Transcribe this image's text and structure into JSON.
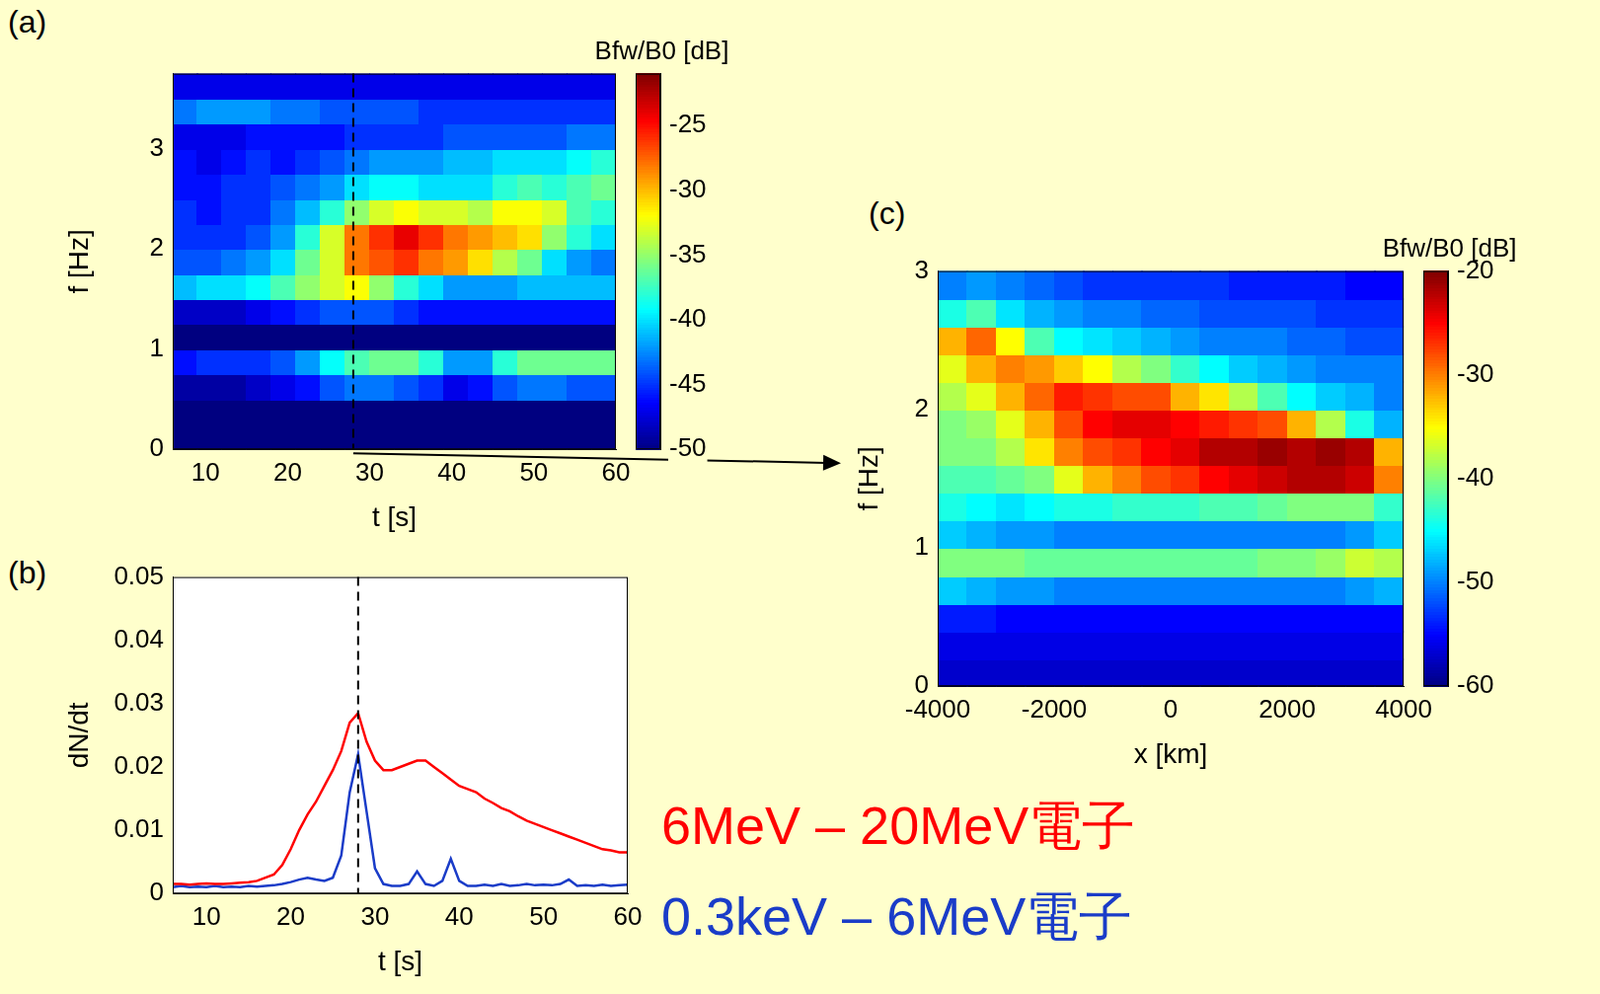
{
  "chart_data": [
    {
      "panel": "(a)",
      "type": "heatmap",
      "x_label": "t [s]",
      "y_label": "f [Hz]",
      "xlim": [
        6,
        60
      ],
      "xticks": [
        10,
        20,
        30,
        40,
        50,
        60
      ],
      "ylim": [
        0,
        3.75
      ],
      "yticks": [
        0,
        1,
        2,
        3
      ],
      "x_edges": [
        6,
        9,
        12,
        15,
        18,
        21,
        24,
        27,
        30,
        33,
        36,
        39,
        42,
        45,
        48,
        51,
        54,
        57,
        60
      ],
      "y_edges": [
        0,
        0.25,
        0.5,
        0.75,
        1,
        1.25,
        1.5,
        1.75,
        2,
        2.25,
        2.5,
        2.75,
        3,
        3.25,
        3.5,
        3.75
      ],
      "z": [
        [
          -50,
          -50,
          -50,
          -50,
          -50,
          -50,
          -50,
          -50,
          -50,
          -50,
          -50,
          -50,
          -50,
          -50,
          -50,
          -50,
          -50,
          -50
        ],
        [
          -50,
          -50,
          -50,
          -50,
          -50,
          -50,
          -50,
          -50,
          -50,
          -50,
          -50,
          -50,
          -50,
          -50,
          -50,
          -50,
          -50,
          -50
        ],
        [
          -49,
          -49,
          -49,
          -48,
          -47,
          -46,
          -44,
          -43,
          -43,
          -44,
          -45,
          -47,
          -46,
          -44,
          -43,
          -43,
          -44,
          -44
        ],
        [
          -46,
          -45,
          -45,
          -45,
          -44,
          -42,
          -39,
          -37,
          -36,
          -36,
          -38,
          -42,
          -42,
          -38,
          -36,
          -36,
          -36,
          -36
        ],
        [
          -50,
          -50,
          -50,
          -50,
          -50,
          -50,
          -50,
          -50,
          -50,
          -50,
          -50,
          -50,
          -50,
          -50,
          -50,
          -50,
          -50,
          -50
        ],
        [
          -48,
          -48,
          -48,
          -47,
          -46,
          -45,
          -44,
          -44,
          -44,
          -45,
          -46,
          -46,
          -46,
          -46,
          -46,
          -46,
          -46,
          -46
        ],
        [
          -41,
          -40,
          -40,
          -39,
          -37,
          -35,
          -33,
          -32,
          -35,
          -38,
          -40,
          -42,
          -42,
          -42,
          -41,
          -41,
          -41,
          -41
        ],
        [
          -44,
          -44,
          -43,
          -42,
          -40,
          -36,
          -33,
          -28,
          -27,
          -26,
          -28,
          -29,
          -31,
          -34,
          -36,
          -40,
          -42,
          -43
        ],
        [
          -45,
          -45,
          -45,
          -44,
          -42,
          -38,
          -33,
          -28,
          -26,
          -24,
          -26,
          -28,
          -29,
          -30,
          -31,
          -35,
          -38,
          -40
        ],
        [
          -45,
          -46,
          -45,
          -45,
          -43,
          -41,
          -38,
          -35,
          -33,
          -32,
          -33,
          -33,
          -34,
          -32,
          -32,
          -33,
          -37,
          -38
        ],
        [
          -46,
          -46,
          -45,
          -45,
          -44,
          -43,
          -42,
          -40,
          -39,
          -39,
          -40,
          -40,
          -40,
          -38,
          -37,
          -38,
          -37,
          -36
        ],
        [
          -46,
          -47,
          -46,
          -45,
          -46,
          -45,
          -44,
          -43,
          -42,
          -42,
          -42,
          -41,
          -41,
          -40,
          -40,
          -40,
          -39,
          -38
        ],
        [
          -47,
          -47,
          -47,
          -46,
          -46,
          -46,
          -46,
          -45,
          -45,
          -45,
          -45,
          -44,
          -44,
          -44,
          -44,
          -44,
          -43,
          -43
        ],
        [
          -43,
          -42,
          -42,
          -42,
          -43,
          -43,
          -44,
          -44,
          -44,
          -44,
          -45,
          -45,
          -45,
          -45,
          -45,
          -45,
          -45,
          -45
        ],
        [
          -47,
          -47,
          -47,
          -47,
          -47,
          -47,
          -47,
          -47,
          -47,
          -47,
          -47,
          -47,
          -47,
          -47,
          -47,
          -47,
          -47,
          -47
        ]
      ],
      "colorbar": {
        "label": "Bfw/B0 [dB]",
        "range": [
          -50,
          -21
        ],
        "ticks": [
          -50,
          -45,
          -40,
          -35,
          -30,
          -25
        ]
      },
      "vline_t": 28
    },
    {
      "panel": "(b)",
      "type": "line",
      "x_label": "t [s]",
      "y_label": "dN/dt",
      "xlim": [
        6,
        60
      ],
      "xticks": [
        10,
        20,
        30,
        40,
        50,
        60
      ],
      "ylim": [
        0,
        0.05
      ],
      "yticks": [
        0,
        0.01,
        0.02,
        0.03,
        0.04,
        0.05
      ],
      "x": [
        6,
        7,
        8,
        9,
        10,
        11,
        12,
        13,
        14,
        15,
        16,
        17,
        18,
        19,
        20,
        21,
        22,
        23,
        24,
        25,
        26,
        27,
        28,
        29,
        30,
        31,
        32,
        33,
        34,
        35,
        36,
        37,
        38,
        39,
        40,
        41,
        42,
        43,
        44,
        45,
        46,
        47,
        48,
        49,
        50,
        51,
        52,
        53,
        54,
        55,
        56,
        57,
        58,
        59,
        60
      ],
      "series": [
        {
          "name": "6MeV – 20MeV電子",
          "color": "#ff0000",
          "values": [
            0.0015,
            0.0015,
            0.0014,
            0.0015,
            0.0016,
            0.0015,
            0.0015,
            0.0016,
            0.0017,
            0.0018,
            0.002,
            0.0025,
            0.003,
            0.0045,
            0.007,
            0.01,
            0.0125,
            0.0145,
            0.017,
            0.0195,
            0.0225,
            0.027,
            0.0285,
            0.024,
            0.021,
            0.0195,
            0.0195,
            0.02,
            0.0205,
            0.021,
            0.021,
            0.02,
            0.019,
            0.018,
            0.017,
            0.0165,
            0.016,
            0.015,
            0.0143,
            0.0135,
            0.013,
            0.0122,
            0.0115,
            0.011,
            0.0105,
            0.01,
            0.0095,
            0.009,
            0.0085,
            0.008,
            0.0075,
            0.007,
            0.0068,
            0.0065,
            0.0065
          ]
        },
        {
          "name": "0.3keV – 6MeV電子",
          "color": "#1a3cc8",
          "values": [
            0.001,
            0.0012,
            0.001,
            0.0011,
            0.001,
            0.0012,
            0.001,
            0.0011,
            0.001,
            0.0012,
            0.0011,
            0.0012,
            0.0013,
            0.0015,
            0.0018,
            0.0022,
            0.0025,
            0.0022,
            0.002,
            0.0025,
            0.006,
            0.016,
            0.022,
            0.013,
            0.004,
            0.0015,
            0.0012,
            0.0012,
            0.0015,
            0.0035,
            0.0015,
            0.0012,
            0.002,
            0.0055,
            0.002,
            0.0012,
            0.0012,
            0.0014,
            0.0012,
            0.0015,
            0.0012,
            0.0013,
            0.0015,
            0.0013,
            0.0014,
            0.0013,
            0.0015,
            0.0022,
            0.0012,
            0.0013,
            0.0012,
            0.0014,
            0.0012,
            0.0013,
            0.0014
          ]
        }
      ],
      "legend": "lower right",
      "vline_t": 28
    },
    {
      "panel": "(c)",
      "type": "heatmap",
      "x_label": "x [km]",
      "y_label": "f [Hz]",
      "xlim": [
        -4000,
        4000
      ],
      "xticks": [
        -4000,
        -2000,
        0,
        2000,
        4000
      ],
      "ylim": [
        0,
        3
      ],
      "yticks": [
        0,
        1,
        2,
        3
      ],
      "x_edges": [
        -4000,
        -3500,
        -3000,
        -2500,
        -2000,
        -1500,
        -1000,
        -500,
        0,
        500,
        1000,
        1500,
        2000,
        2500,
        3000,
        3500,
        4000
      ],
      "y_edges": [
        0,
        0.2,
        0.4,
        0.6,
        0.8,
        1,
        1.2,
        1.4,
        1.6,
        1.8,
        2,
        2.2,
        2.4,
        2.6,
        2.8,
        3
      ],
      "z": [
        [
          -57,
          -57,
          -57,
          -57,
          -57,
          -57,
          -57,
          -57,
          -57,
          -57,
          -57,
          -57,
          -57,
          -57,
          -57,
          -57
        ],
        [
          -56,
          -56,
          -56,
          -56,
          -56,
          -56,
          -56,
          -56,
          -56,
          -56,
          -56,
          -56,
          -56,
          -56,
          -56,
          -56
        ],
        [
          -54,
          -54,
          -55,
          -55,
          -55,
          -55,
          -55,
          -55,
          -55,
          -55,
          -55,
          -55,
          -55,
          -55,
          -55,
          -55
        ],
        [
          -47,
          -48,
          -49,
          -49,
          -50,
          -50,
          -50,
          -50,
          -50,
          -50,
          -50,
          -50,
          -50,
          -50,
          -49,
          -48
        ],
        [
          -40,
          -40,
          -40,
          -41,
          -41,
          -41,
          -41,
          -41,
          -41,
          -41,
          -41,
          -40,
          -40,
          -39,
          -37,
          -38
        ],
        [
          -47,
          -48,
          -49,
          -49,
          -50,
          -50,
          -50,
          -50,
          -50,
          -50,
          -50,
          -50,
          -50,
          -50,
          -49,
          -47
        ],
        [
          -44,
          -45,
          -46,
          -45,
          -44,
          -44,
          -43,
          -43,
          -43,
          -42,
          -42,
          -41,
          -40,
          -40,
          -40,
          -43
        ],
        [
          -42,
          -42,
          -41,
          -40,
          -36,
          -32,
          -30,
          -28,
          -27,
          -25,
          -24,
          -23,
          -22,
          -22,
          -23,
          -30
        ],
        [
          -40,
          -40,
          -38,
          -34,
          -30,
          -28,
          -27,
          -25,
          -24,
          -22,
          -22,
          -21,
          -22,
          -21,
          -22,
          -32
        ],
        [
          -40,
          -39,
          -36,
          -32,
          -28,
          -25,
          -24,
          -24,
          -25,
          -26,
          -27,
          -28,
          -32,
          -38,
          -44,
          -48
        ],
        [
          -38,
          -36,
          -32,
          -29,
          -26,
          -27,
          -28,
          -28,
          -32,
          -34,
          -38,
          -42,
          -45,
          -47,
          -48,
          -50
        ],
        [
          -36,
          -32,
          -30,
          -31,
          -33,
          -35,
          -38,
          -40,
          -43,
          -45,
          -47,
          -48,
          -49,
          -50,
          -50,
          -50
        ],
        [
          -32,
          -29,
          -35,
          -42,
          -45,
          -46,
          -47,
          -48,
          -49,
          -50,
          -50,
          -50,
          -51,
          -51,
          -52,
          -52
        ],
        [
          -44,
          -42,
          -46,
          -48,
          -49,
          -50,
          -50,
          -51,
          -51,
          -52,
          -52,
          -52,
          -52,
          -53,
          -53,
          -53
        ],
        [
          -50,
          -49,
          -50,
          -51,
          -52,
          -53,
          -53,
          -53,
          -53,
          -53,
          -54,
          -54,
          -54,
          -54,
          -55,
          -55
        ]
      ],
      "colorbar": {
        "label": "Bfw/B0 [dB]",
        "range": [
          -60,
          -20
        ],
        "ticks": [
          -60,
          -50,
          -40,
          -30,
          -20
        ]
      }
    }
  ]
}
